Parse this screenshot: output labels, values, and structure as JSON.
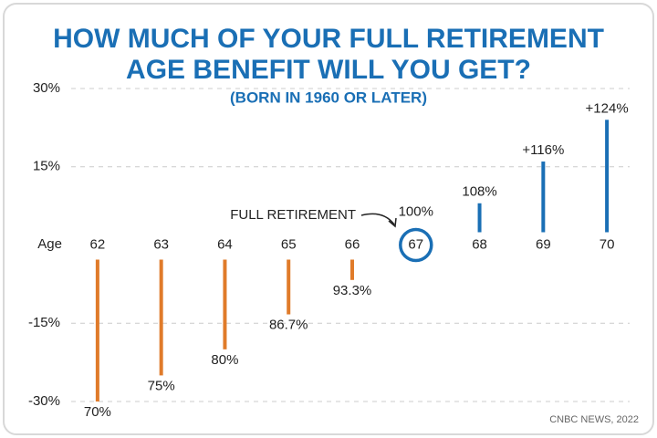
{
  "chart_data": {
    "type": "bar",
    "title": [
      "HOW MUCH OF YOUR FULL RETIREMENT",
      "AGE BENEFIT WILL YOU GET?"
    ],
    "subtitle": "(BORN IN 1960 OR LATER)",
    "x_label": "Age",
    "categories": [
      "62",
      "63",
      "64",
      "65",
      "66",
      "67",
      "68",
      "69",
      "70"
    ],
    "values": [
      -30,
      -25,
      -20,
      -13.3,
      -6.7,
      0,
      8,
      16,
      24
    ],
    "benefit_labels": [
      "70%",
      "75%",
      "80%",
      "86.7%",
      "93.3%",
      "100%",
      "108%",
      "+116%",
      "+124%"
    ],
    "negative_color": "#e07b2a",
    "positive_color": "#1a6fb5",
    "ylim": [
      -30,
      30
    ],
    "yticks": [
      {
        "value": 30,
        "label": "30%"
      },
      {
        "value": 15,
        "label": "15%"
      },
      {
        "value": -15,
        "label": "-15%"
      },
      {
        "value": -30,
        "label": "-30%"
      }
    ],
    "grid": true,
    "annotation": "FULL RETIREMENT",
    "source": "CNBC NEWS, 2022"
  }
}
